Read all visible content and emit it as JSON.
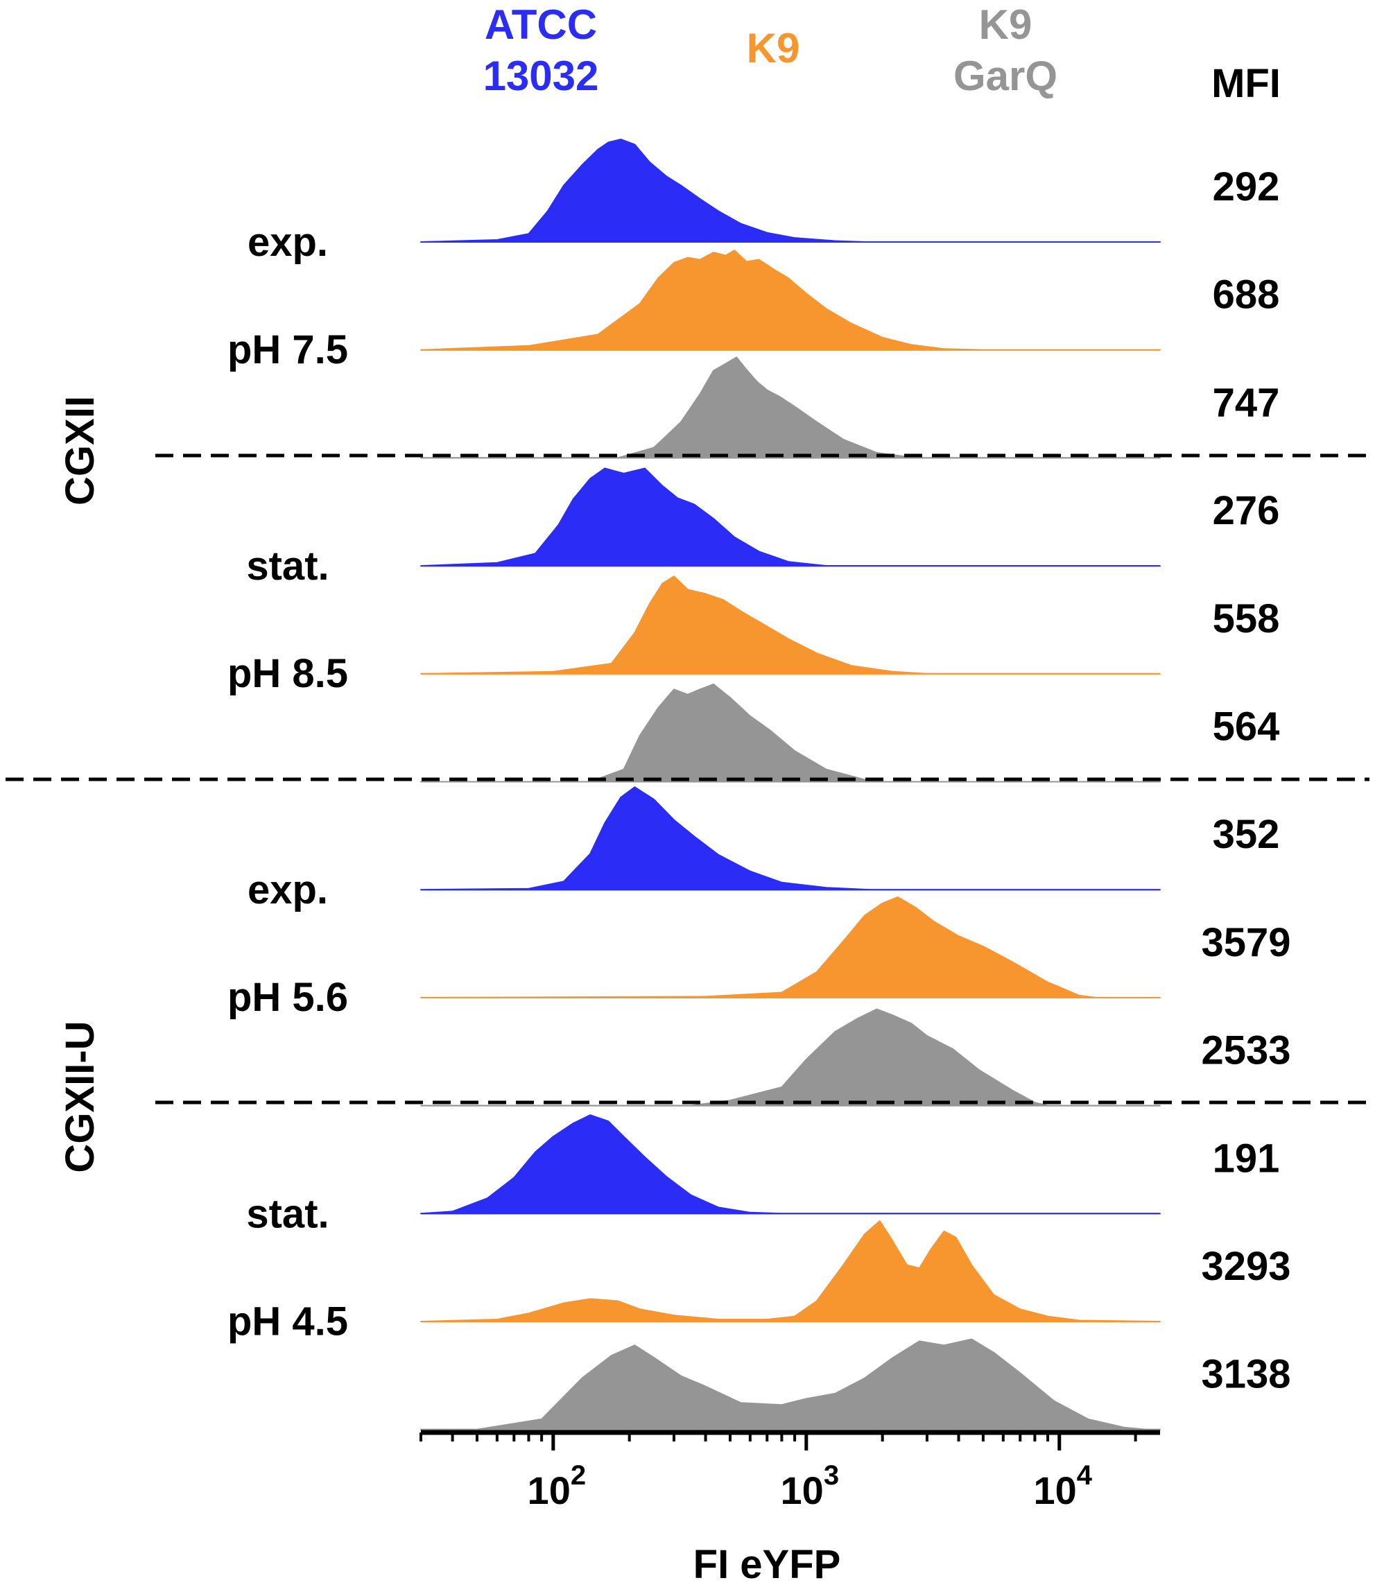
{
  "chart_data": {
    "type": "histogram-stack",
    "xlabel": "FI eYFP",
    "xscale": "log",
    "xlim": [
      30,
      25000
    ],
    "x_ticks": [
      {
        "base": "10",
        "exp": "2",
        "value": 100
      },
      {
        "base": "10",
        "exp": "3",
        "value": 1000
      },
      {
        "base": "10",
        "exp": "4",
        "value": 10000
      }
    ],
    "mfi_header": "MFI",
    "legend": [
      {
        "label_lines": [
          "ATCC",
          "13032"
        ],
        "color": "#2b2cf5"
      },
      {
        "label_lines": [
          "K9"
        ],
        "color": "#f7962e"
      },
      {
        "label_lines": [
          "K9",
          "GarQ"
        ],
        "color": "#959595"
      }
    ],
    "media": [
      {
        "label": "CGXII",
        "conditions": [
          0,
          1
        ]
      },
      {
        "label": "CGXII-U",
        "conditions": [
          2,
          3
        ]
      }
    ],
    "conditions": [
      {
        "phase": "exp.",
        "ph": "pH 7.5",
        "medium": "CGXII"
      },
      {
        "phase": "stat.",
        "ph": "pH 8.5",
        "medium": "CGXII"
      },
      {
        "phase": "exp.",
        "ph": "pH 5.6",
        "medium": "CGXII-U"
      },
      {
        "phase": "stat.",
        "ph": "pH 4.5",
        "medium": "CGXII-U"
      }
    ],
    "series": [
      {
        "strain": "ATCC 13032",
        "condition": 0,
        "mfi": "292",
        "color": "#2b2cf5",
        "points": [
          [
            30,
            0
          ],
          [
            60,
            0.02
          ],
          [
            80,
            0.08
          ],
          [
            95,
            0.3
          ],
          [
            110,
            0.55
          ],
          [
            130,
            0.75
          ],
          [
            150,
            0.9
          ],
          [
            165,
            0.97
          ],
          [
            185,
            1.0
          ],
          [
            210,
            0.95
          ],
          [
            240,
            0.78
          ],
          [
            280,
            0.64
          ],
          [
            320,
            0.55
          ],
          [
            380,
            0.42
          ],
          [
            450,
            0.3
          ],
          [
            550,
            0.18
          ],
          [
            700,
            0.09
          ],
          [
            900,
            0.04
          ],
          [
            1300,
            0.01
          ],
          [
            1700,
            0
          ],
          [
            25000,
            0
          ]
        ]
      },
      {
        "strain": "K9",
        "condition": 0,
        "mfi": "688",
        "color": "#f7962e",
        "points": [
          [
            30,
            0
          ],
          [
            80,
            0.04
          ],
          [
            150,
            0.15
          ],
          [
            220,
            0.45
          ],
          [
            260,
            0.7
          ],
          [
            300,
            0.85
          ],
          [
            340,
            0.9
          ],
          [
            380,
            0.88
          ],
          [
            430,
            0.95
          ],
          [
            480,
            0.92
          ],
          [
            520,
            0.97
          ],
          [
            580,
            0.86
          ],
          [
            650,
            0.88
          ],
          [
            750,
            0.78
          ],
          [
            850,
            0.7
          ],
          [
            1000,
            0.55
          ],
          [
            1200,
            0.4
          ],
          [
            1500,
            0.26
          ],
          [
            2000,
            0.12
          ],
          [
            2600,
            0.05
          ],
          [
            3500,
            0.01
          ],
          [
            5000,
            0
          ],
          [
            25000,
            0
          ]
        ]
      },
      {
        "strain": "K9 GarQ",
        "condition": 0,
        "mfi": "747",
        "color": "#959595",
        "points": [
          [
            180,
            0
          ],
          [
            250,
            0.1
          ],
          [
            320,
            0.35
          ],
          [
            380,
            0.62
          ],
          [
            430,
            0.85
          ],
          [
            490,
            0.93
          ],
          [
            530,
            0.98
          ],
          [
            580,
            0.86
          ],
          [
            640,
            0.74
          ],
          [
            700,
            0.66
          ],
          [
            780,
            0.6
          ],
          [
            900,
            0.5
          ],
          [
            1100,
            0.35
          ],
          [
            1400,
            0.18
          ],
          [
            1900,
            0.05
          ],
          [
            2700,
            0
          ]
        ]
      },
      {
        "strain": "ATCC 13032",
        "condition": 1,
        "mfi": "276",
        "color": "#2b2cf5",
        "points": [
          [
            30,
            0
          ],
          [
            60,
            0.03
          ],
          [
            85,
            0.12
          ],
          [
            105,
            0.4
          ],
          [
            120,
            0.65
          ],
          [
            140,
            0.85
          ],
          [
            160,
            0.95
          ],
          [
            190,
            0.9
          ],
          [
            230,
            0.95
          ],
          [
            270,
            0.78
          ],
          [
            310,
            0.66
          ],
          [
            360,
            0.6
          ],
          [
            430,
            0.46
          ],
          [
            520,
            0.28
          ],
          [
            650,
            0.14
          ],
          [
            850,
            0.04
          ],
          [
            1200,
            0
          ],
          [
            25000,
            0
          ]
        ]
      },
      {
        "strain": "K9",
        "condition": 1,
        "mfi": "558",
        "color": "#f7962e",
        "points": [
          [
            30,
            0
          ],
          [
            100,
            0.02
          ],
          [
            170,
            0.1
          ],
          [
            210,
            0.4
          ],
          [
            240,
            0.68
          ],
          [
            270,
            0.88
          ],
          [
            300,
            0.95
          ],
          [
            340,
            0.82
          ],
          [
            400,
            0.78
          ],
          [
            470,
            0.72
          ],
          [
            560,
            0.6
          ],
          [
            680,
            0.48
          ],
          [
            850,
            0.34
          ],
          [
            1100,
            0.2
          ],
          [
            1500,
            0.08
          ],
          [
            2200,
            0.02
          ],
          [
            3000,
            0
          ],
          [
            25000,
            0
          ]
        ]
      },
      {
        "strain": "K9 GarQ",
        "condition": 1,
        "mfi": "564",
        "color": "#959595",
        "points": [
          [
            140,
            0
          ],
          [
            190,
            0.12
          ],
          [
            220,
            0.45
          ],
          [
            260,
            0.72
          ],
          [
            300,
            0.9
          ],
          [
            340,
            0.85
          ],
          [
            380,
            0.9
          ],
          [
            430,
            0.95
          ],
          [
            500,
            0.82
          ],
          [
            600,
            0.64
          ],
          [
            720,
            0.5
          ],
          [
            900,
            0.3
          ],
          [
            1200,
            0.12
          ],
          [
            1700,
            0.02
          ],
          [
            2000,
            0
          ]
        ]
      },
      {
        "strain": "ATCC 13032",
        "condition": 2,
        "mfi": "352",
        "color": "#2b2cf5",
        "points": [
          [
            30,
            0
          ],
          [
            80,
            0.01
          ],
          [
            110,
            0.08
          ],
          [
            140,
            0.35
          ],
          [
            160,
            0.65
          ],
          [
            185,
            0.9
          ],
          [
            210,
            1.0
          ],
          [
            250,
            0.88
          ],
          [
            300,
            0.68
          ],
          [
            360,
            0.52
          ],
          [
            450,
            0.34
          ],
          [
            600,
            0.18
          ],
          [
            800,
            0.07
          ],
          [
            1200,
            0.02
          ],
          [
            1800,
            0
          ],
          [
            25000,
            0
          ]
        ]
      },
      {
        "strain": "K9",
        "condition": 2,
        "mfi": "3579",
        "color": "#f7962e",
        "points": [
          [
            30,
            0
          ],
          [
            400,
            0.01
          ],
          [
            800,
            0.05
          ],
          [
            1100,
            0.25
          ],
          [
            1400,
            0.55
          ],
          [
            1700,
            0.8
          ],
          [
            2000,
            0.92
          ],
          [
            2300,
            0.98
          ],
          [
            2700,
            0.88
          ],
          [
            3200,
            0.74
          ],
          [
            4000,
            0.6
          ],
          [
            5000,
            0.5
          ],
          [
            6500,
            0.35
          ],
          [
            9000,
            0.15
          ],
          [
            12000,
            0.02
          ],
          [
            14000,
            0
          ],
          [
            25000,
            0
          ]
        ]
      },
      {
        "strain": "K9 GarQ",
        "condition": 2,
        "mfi": "2533",
        "color": "#959595",
        "points": [
          [
            350,
            0
          ],
          [
            500,
            0.05
          ],
          [
            800,
            0.18
          ],
          [
            1000,
            0.45
          ],
          [
            1300,
            0.72
          ],
          [
            1600,
            0.85
          ],
          [
            1900,
            0.94
          ],
          [
            2200,
            0.88
          ],
          [
            2600,
            0.8
          ],
          [
            3000,
            0.68
          ],
          [
            3800,
            0.55
          ],
          [
            4800,
            0.35
          ],
          [
            6500,
            0.15
          ],
          [
            8000,
            0.03
          ],
          [
            9000,
            0
          ]
        ]
      },
      {
        "strain": "ATCC 13032",
        "condition": 3,
        "mfi": "191",
        "color": "#2b2cf5",
        "points": [
          [
            30,
            0
          ],
          [
            40,
            0.02
          ],
          [
            55,
            0.15
          ],
          [
            70,
            0.35
          ],
          [
            85,
            0.6
          ],
          [
            100,
            0.75
          ],
          [
            120,
            0.88
          ],
          [
            140,
            0.96
          ],
          [
            165,
            0.9
          ],
          [
            190,
            0.75
          ],
          [
            230,
            0.55
          ],
          [
            280,
            0.36
          ],
          [
            350,
            0.18
          ],
          [
            450,
            0.06
          ],
          [
            600,
            0.01
          ],
          [
            800,
            0
          ],
          [
            25000,
            0
          ]
        ]
      },
      {
        "strain": "K9",
        "condition": 3,
        "mfi": "3293",
        "color": "#f7962e",
        "points": [
          [
            30,
            0
          ],
          [
            60,
            0.02
          ],
          [
            80,
            0.08
          ],
          [
            110,
            0.18
          ],
          [
            140,
            0.22
          ],
          [
            180,
            0.2
          ],
          [
            220,
            0.12
          ],
          [
            300,
            0.06
          ],
          [
            450,
            0.02
          ],
          [
            700,
            0.02
          ],
          [
            900,
            0.05
          ],
          [
            1100,
            0.2
          ],
          [
            1400,
            0.55
          ],
          [
            1700,
            0.85
          ],
          [
            1950,
            0.98
          ],
          [
            2150,
            0.82
          ],
          [
            2500,
            0.55
          ],
          [
            2800,
            0.52
          ],
          [
            3100,
            0.7
          ],
          [
            3500,
            0.88
          ],
          [
            3900,
            0.82
          ],
          [
            4500,
            0.55
          ],
          [
            5500,
            0.26
          ],
          [
            7000,
            0.12
          ],
          [
            9000,
            0.05
          ],
          [
            12000,
            0.01
          ],
          [
            25000,
            0
          ]
        ]
      },
      {
        "strain": "K9 GarQ",
        "condition": 3,
        "mfi": "3138",
        "color": "#959595",
        "points": [
          [
            50,
            0
          ],
          [
            90,
            0.1
          ],
          [
            130,
            0.5
          ],
          [
            170,
            0.72
          ],
          [
            210,
            0.82
          ],
          [
            250,
            0.7
          ],
          [
            320,
            0.52
          ],
          [
            400,
            0.42
          ],
          [
            550,
            0.26
          ],
          [
            800,
            0.24
          ],
          [
            1000,
            0.3
          ],
          [
            1300,
            0.35
          ],
          [
            1700,
            0.5
          ],
          [
            2200,
            0.7
          ],
          [
            2800,
            0.86
          ],
          [
            3500,
            0.82
          ],
          [
            4500,
            0.88
          ],
          [
            5500,
            0.75
          ],
          [
            7000,
            0.55
          ],
          [
            9500,
            0.28
          ],
          [
            13000,
            0.1
          ],
          [
            18000,
            0.02
          ],
          [
            22000,
            0
          ]
        ]
      }
    ]
  }
}
